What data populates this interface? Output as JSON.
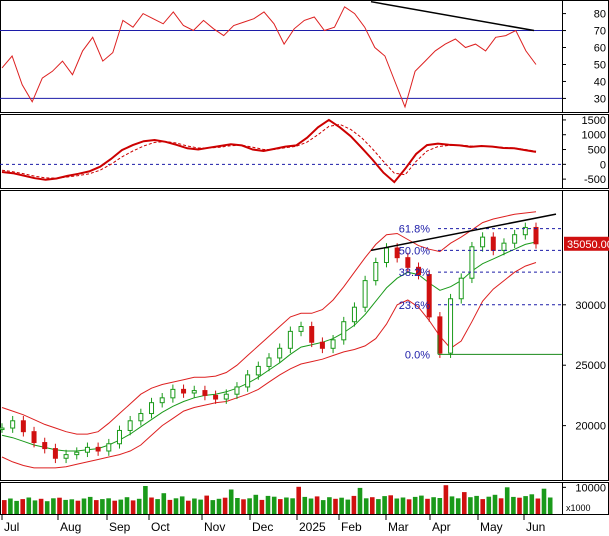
{
  "chart_data": {
    "type": "line",
    "x_axis": {
      "months": [
        "Jul",
        "Aug",
        "Sep",
        "Oct",
        "Nov",
        "Dec",
        "2025",
        "Feb",
        "Mar",
        "Apr",
        "May",
        "Jun"
      ]
    },
    "panels": [
      {
        "id": "rsi",
        "ylim": [
          22,
          88
        ],
        "ticks": [
          80,
          70,
          60,
          50,
          40,
          30
        ],
        "ref_lines": [
          70,
          30
        ],
        "series": [
          {
            "values": [
              48,
              55,
              38,
              28,
              42,
              46,
              52,
              44,
              58,
              66,
              52,
              57,
              76,
              72,
              80,
              77,
              74,
              81,
              73,
              70,
              76,
              71,
              67,
              73,
              75,
              77,
              81,
              74,
              62,
              71,
              76,
              78,
              70,
              72,
              84,
              80,
              72,
              60,
              55,
              40,
              25,
              46,
              52,
              58,
              62,
              65,
              60,
              62,
              58,
              66,
              67,
              70,
              58,
              50
            ],
            "color": "#dd2020"
          }
        ],
        "trendlines": [
          {
            "from": [
              "Feb",
              87
            ],
            "to": [
              "Jun",
              70
            ]
          }
        ]
      },
      {
        "id": "macd",
        "ylim": [
          -800,
          1700
        ],
        "ticks": [
          1500,
          1000,
          500,
          0,
          -500
        ],
        "ref_lines": [
          0
        ],
        "series": [
          {
            "values": [
              -260,
              -300,
              -380,
              -470,
              -520,
              -480,
              -390,
              -320,
              -240,
              -80,
              180,
              480,
              650,
              780,
              820,
              760,
              660,
              540,
              500,
              560,
              620,
              680,
              640,
              500,
              450,
              520,
              600,
              640,
              900,
              1250,
              1500,
              1250,
              950,
              560,
              160,
              -280,
              -600,
              -150,
              350,
              650,
              700,
              660,
              640,
              590,
              620,
              600,
              550,
              540,
              480,
              420
            ],
            "color": "#cc0000"
          },
          {
            "values": [
              -200,
              -250,
              -320,
              -400,
              -460,
              -470,
              -430,
              -380,
              -320,
              -200,
              0,
              250,
              450,
              620,
              740,
              770,
              720,
              620,
              550,
              550,
              580,
              630,
              650,
              580,
              500,
              500,
              560,
              610,
              750,
              1000,
              1280,
              1350,
              1180,
              900,
              520,
              100,
              -300,
              -350,
              100,
              450,
              600,
              640,
              650,
              620,
              610,
              600,
              570,
              550,
              500,
              440
            ],
            "color": "#cc0000",
            "dashed": true
          }
        ]
      },
      {
        "id": "price",
        "ylim": [
          15500,
          39500
        ],
        "ticks": [
          30000,
          25000,
          20000
        ],
        "last_price_label": "35050.00",
        "series": [
          {
            "name": "close",
            "values": [
              19800,
              20400,
              19500,
              18600,
              18100,
              17300,
              17600,
              17800,
              18200,
              17900,
              18500,
              19600,
              20400,
              21000,
              21900,
              22300,
              23000,
              22700,
              22900,
              22500,
              22200,
              22600,
              23200,
              24200,
              24900,
              25600,
              26400,
              27800,
              28200,
              26900,
              26400,
              27100,
              28600,
              29800,
              32000,
              33500,
              34700,
              33900,
              33100,
              32500,
              29000,
              26000,
              30500,
              32200,
              34800,
              35600,
              34500,
              35100,
              35800,
              36400,
              35050
            ],
            "color": "#1a9a1a"
          },
          {
            "name": "ma",
            "values": [
              19200,
              19000,
              18700,
              18400,
              18200,
              18000,
              17900,
              17900,
              18000,
              18100,
              18400,
              18800,
              19300,
              19900,
              20500,
              21100,
              21600,
              22000,
              22300,
              22500,
              22600,
              22800,
              23100,
              23500,
              24000,
              24600,
              25200,
              25900,
              26500,
              26700,
              26900,
              27200,
              27700,
              28300,
              29200,
              30300,
              31400,
              32200,
              32700,
              32500,
              31800,
              31200,
              31500,
              32000,
              32800,
              33400,
              33800,
              34200,
              34600,
              35000,
              35200
            ],
            "color": "#1a9a1a"
          },
          {
            "name": "upper band",
            "values": [
              21500,
              21200,
              20900,
              20500,
              20100,
              19800,
              19500,
              19300,
              19300,
              19500,
              20200,
              21000,
              21800,
              22600,
              23100,
              23400,
              23600,
              23800,
              24000,
              24000,
              24100,
              24400,
              25000,
              25800,
              26600,
              27400,
              28200,
              29000,
              29300,
              29300,
              29600,
              30400,
              31500,
              32700,
              33900,
              35000,
              35800,
              35900,
              35400,
              34900,
              34600,
              34400,
              35100,
              35600,
              36200,
              36800,
              37100,
              37300,
              37500,
              37600,
              37700
            ],
            "color": "#dd2020"
          },
          {
            "name": "lower band",
            "values": [
              17400,
              17000,
              16700,
              16500,
              16500,
              16500,
              16600,
              16800,
              17000,
              17200,
              17400,
              17600,
              17900,
              18400,
              19200,
              20000,
              20600,
              21200,
              21500,
              21700,
              21900,
              22000,
              22300,
              22600,
              23000,
              23600,
              24200,
              24700,
              25100,
              25300,
              25500,
              25800,
              26100,
              26300,
              26600,
              27200,
              28400,
              30000,
              30400,
              29800,
              28700,
              27400,
              26400,
              27000,
              28600,
              30300,
              31300,
              32000,
              32700,
              33200,
              33500
            ],
            "color": "#dd2020"
          }
        ],
        "trendlines": [
          {
            "from": [
              "Feb",
              34500
            ],
            "to": [
              "Jun",
              37500
            ]
          }
        ],
        "fibonacci": {
          "levels": [
            {
              "label": "61.8%",
              "value": 36300
            },
            {
              "label": "50.0%",
              "value": 34500
            },
            {
              "label": "38.2%",
              "value": 32700
            },
            {
              "label": "23.6%",
              "value": 30000
            },
            {
              "label": "0.0%",
              "value": 25900
            }
          ]
        }
      },
      {
        "id": "volume",
        "ylim": [
          0,
          12000
        ],
        "ticks": [
          10000
        ],
        "unit_label": "x1000",
        "values": [
          5200,
          5800,
          4900,
          5600,
          6200,
          5100,
          5700,
          4800,
          5900,
          6100,
          5300,
          5500,
          5000,
          5800,
          6400,
          5200,
          5600,
          5900,
          5000,
          5400,
          6300,
          5100,
          5700,
          10500,
          6200,
          5600,
          7800,
          5300,
          5900,
          6600,
          5000,
          5800,
          5400,
          6900,
          5200,
          5700,
          6100,
          9200,
          6000,
          5500,
          5900,
          7200,
          5300,
          6800,
          6500,
          5600,
          6200,
          5900,
          10200,
          6400,
          5800,
          6600,
          5200,
          6300,
          5700,
          6100,
          5400,
          6800,
          9800,
          5900,
          6300,
          5600,
          6700,
          7000,
          5800,
          6200,
          5500,
          6400,
          6900,
          5700,
          6300,
          6000,
          10800,
          6600,
          5900,
          8200,
          6300,
          6800,
          5600,
          6500,
          7200,
          5900,
          10000,
          6400,
          6100,
          6700,
          7400,
          5800,
          9500,
          6200
        ]
      }
    ]
  }
}
